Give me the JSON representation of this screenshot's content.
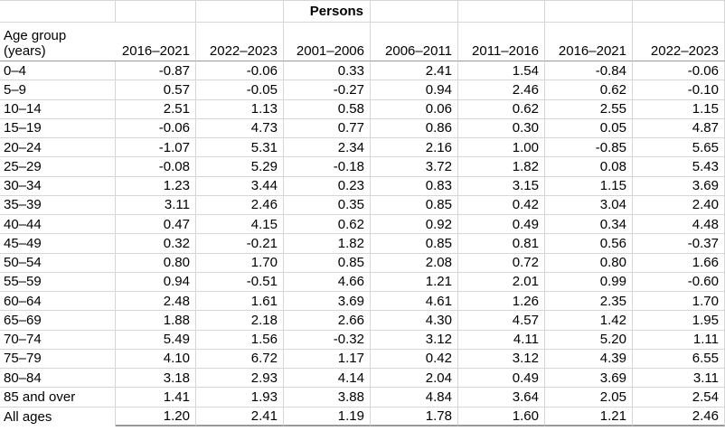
{
  "sheet": {
    "title": "Persons",
    "corner_header": {
      "line1": "Age group",
      "line2": "(years)"
    },
    "columns": [
      "2016–2021",
      "2022–2023",
      "2001–2006",
      "2006–2011",
      "2011–2016",
      "2016–2021",
      "2022–2023"
    ],
    "rows": [
      {
        "label": "0–4",
        "values": [
          "-0.87",
          "-0.06",
          "0.33",
          "2.41",
          "1.54",
          "-0.84",
          "-0.06"
        ]
      },
      {
        "label": "5–9",
        "values": [
          "0.57",
          "-0.05",
          "-0.27",
          "0.94",
          "2.46",
          "0.62",
          "-0.10"
        ]
      },
      {
        "label": "10–14",
        "values": [
          "2.51",
          "1.13",
          "0.58",
          "0.06",
          "0.62",
          "2.55",
          "1.15"
        ]
      },
      {
        "label": "15–19",
        "values": [
          "-0.06",
          "4.73",
          "0.77",
          "0.86",
          "0.30",
          "0.05",
          "4.87"
        ]
      },
      {
        "label": "20–24",
        "values": [
          "-1.07",
          "5.31",
          "2.34",
          "2.16",
          "1.00",
          "-0.85",
          "5.65"
        ]
      },
      {
        "label": "25–29",
        "values": [
          "-0.08",
          "5.29",
          "-0.18",
          "3.72",
          "1.82",
          "0.08",
          "5.43"
        ]
      },
      {
        "label": "30–34",
        "values": [
          "1.23",
          "3.44",
          "0.23",
          "0.83",
          "3.15",
          "1.15",
          "3.69"
        ]
      },
      {
        "label": "35–39",
        "values": [
          "3.11",
          "2.46",
          "0.35",
          "0.85",
          "0.42",
          "3.04",
          "2.40"
        ]
      },
      {
        "label": "40–44",
        "values": [
          "0.47",
          "4.15",
          "0.62",
          "0.92",
          "0.49",
          "0.34",
          "4.48"
        ]
      },
      {
        "label": "45–49",
        "values": [
          "0.32",
          "-0.21",
          "1.82",
          "0.85",
          "0.81",
          "0.56",
          "-0.37"
        ]
      },
      {
        "label": "50–54",
        "values": [
          "0.80",
          "1.70",
          "0.85",
          "2.08",
          "0.72",
          "0.80",
          "1.66"
        ]
      },
      {
        "label": "55–59",
        "values": [
          "0.94",
          "-0.51",
          "4.66",
          "1.21",
          "2.01",
          "0.99",
          "-0.60"
        ]
      },
      {
        "label": "60–64",
        "values": [
          "2.48",
          "1.61",
          "3.69",
          "4.61",
          "1.26",
          "2.35",
          "1.70"
        ]
      },
      {
        "label": "65–69",
        "values": [
          "1.88",
          "2.18",
          "2.66",
          "4.30",
          "4.57",
          "1.42",
          "1.95"
        ]
      },
      {
        "label": "70–74",
        "values": [
          "5.49",
          "1.56",
          "-0.32",
          "3.12",
          "4.11",
          "5.20",
          "1.11"
        ]
      },
      {
        "label": "75–79",
        "values": [
          "4.10",
          "6.72",
          "1.17",
          "0.42",
          "3.12",
          "4.39",
          "6.55"
        ]
      },
      {
        "label": "80–84",
        "values": [
          "3.18",
          "2.93",
          "4.14",
          "2.04",
          "0.49",
          "3.69",
          "3.11"
        ]
      },
      {
        "label": "85 and over",
        "values": [
          "1.41",
          "1.93",
          "3.88",
          "4.84",
          "3.64",
          "2.05",
          "2.54"
        ]
      },
      {
        "label": "All ages",
        "values": [
          "1.20",
          "2.41",
          "1.19",
          "1.78",
          "1.60",
          "1.21",
          "2.46"
        ]
      }
    ]
  },
  "colors": {
    "gridline": "#d6d6d6",
    "header_rule": "#999999",
    "text": "#000000",
    "background": "#ffffff"
  }
}
